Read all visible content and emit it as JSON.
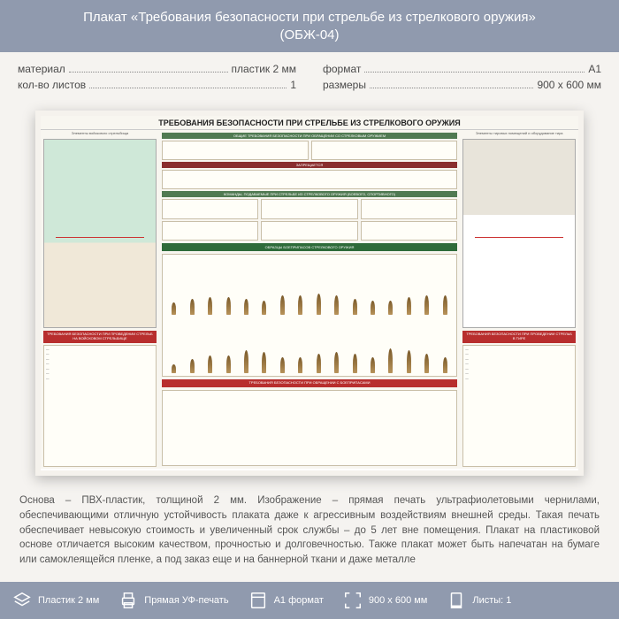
{
  "header": {
    "title_line1": "Плакат «Требования безопасности при стрельбе из стрелкового оружия»",
    "title_line2": "(ОБЖ-04)"
  },
  "specs": {
    "left": [
      {
        "label": "материал",
        "value": "пластик 2 мм"
      },
      {
        "label": "кол-во листов",
        "value": "1"
      }
    ],
    "right": [
      {
        "label": "формат",
        "value": "A1"
      },
      {
        "label": "размеры",
        "value": "900 х 600 мм"
      }
    ]
  },
  "poster": {
    "title": "ТРЕБОВАНИЯ БЕЗОПАСНОСТИ ПРИ СТРЕЛЬБЕ ИЗ СТРЕЛКОВОГО ОРУЖИЯ",
    "left_diagram_caption": "Элементы войскового стрельбища",
    "left_red_band": "ТРЕБОВАНИЯ БЕЗОПАСНОСТИ ПРИ ПРОВЕДЕНИИ СТРЕЛЬБ НА ВОЙСКОВОМ СТРЕЛЬБИЩЕ",
    "mid_top_head": "ОБЩИЕ ТРЕБОВАНИЯ БЕЗОПАСНОСТИ ПРИ ОБРАЩЕНИИ СО СТРЕЛКОВЫМ ОРУЖИЕМ",
    "mid_green_band": "ОБРАЗЦЫ БОЕПРИПАСОВ СТРЕЛКОВОГО ОРУЖИЯ",
    "mid_red_band": "ТРЕБОВАНИЯ БЕЗОПАСНОСТИ ПРИ ОБРАЩЕНИИ С БОЕПРИПАСАМИ",
    "right_diagram_caption": "Элементы тировых помещений и оборудование тира",
    "right_red_band": "ТРЕБОВАНИЯ БЕЗОПАСНОСТИ ПРИ ПРОВЕДЕНИИ СТРЕЛЬБ В ТИРЕ",
    "bullet_rows": [
      [
        14,
        18,
        20,
        20,
        18,
        16,
        22,
        22,
        24,
        22,
        18,
        16,
        16,
        20,
        22,
        22
      ],
      [
        10,
        16,
        20,
        20,
        26,
        24,
        18,
        18,
        22,
        24,
        22,
        18,
        28,
        26,
        22,
        18
      ]
    ],
    "colors": {
      "header_bg": "#909aae",
      "red": "#b82e2e",
      "green": "#2e6b3a",
      "poster_bg": "#f8f6f0",
      "diagram_top": "#cfe8d8",
      "diagram_bottom": "#f0e8d8"
    }
  },
  "description": "Основа – ПВХ-пластик, толщиной 2 мм. Изображение – прямая печать ультрафиолетовыми чернилами, обеспечивающими отличную устойчивость плаката даже к агрессивным воздействиям внешней среды. Такая печать обеспечивает невысокую стоимость и увеличенный срок службы – до 5 лет вне помещения. Плакат на пластиковой основе отличается высоким качеством, прочностью и долговечностью. Также плакат может быть напечатан на бумаге или самоклеящейся пленке, а под заказ еще и на баннерной ткани и даже металле",
  "footer": [
    {
      "icon": "layers-icon",
      "label": "Пластик 2 мм"
    },
    {
      "icon": "printer-icon",
      "label": "Прямая УФ-печать"
    },
    {
      "icon": "format-icon",
      "label": "A1 формат"
    },
    {
      "icon": "size-icon",
      "label": "900 х 600 мм"
    },
    {
      "icon": "sheets-icon",
      "label": "Листы: 1"
    }
  ]
}
